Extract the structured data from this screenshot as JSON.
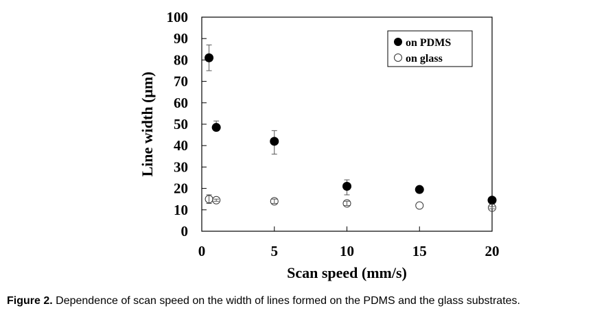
{
  "chart_data": {
    "type": "scatter",
    "xlabel": "Scan speed (mm/s)",
    "ylabel": "Line width (μm)",
    "xlim": [
      0,
      20
    ],
    "ylim": [
      0,
      100
    ],
    "xticks": [
      0,
      5,
      10,
      15,
      20
    ],
    "yticks": [
      0,
      10,
      20,
      30,
      40,
      50,
      60,
      70,
      80,
      90,
      100
    ],
    "legend_position": "top-right",
    "series": [
      {
        "name": "on PDMS",
        "marker": "filled-circle",
        "x": [
          0.5,
          1,
          5,
          10,
          15,
          20
        ],
        "y": [
          81,
          48.5,
          42,
          21,
          19.5,
          14.5
        ],
        "err_low": [
          75,
          48.5,
          36,
          17,
          18,
          14.5
        ],
        "err_high": [
          87,
          51.5,
          47,
          24,
          19.5,
          14.5
        ]
      },
      {
        "name": "on glass",
        "marker": "open-circle",
        "x": [
          0.5,
          1,
          5,
          10,
          15,
          20
        ],
        "y": [
          15,
          14.5,
          14,
          13,
          12,
          11
        ],
        "err_low": [
          13,
          14,
          13,
          12,
          12,
          10.5
        ],
        "err_high": [
          17,
          15,
          15,
          14,
          12,
          11.5
        ]
      }
    ]
  },
  "caption": {
    "label": "Figure 2.",
    "text": " Dependence of scan speed on the width of lines formed on the PDMS and the glass substrates."
  }
}
